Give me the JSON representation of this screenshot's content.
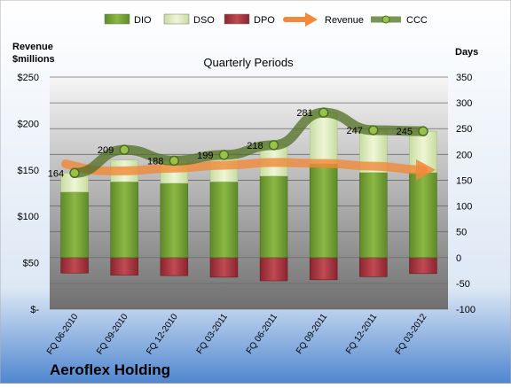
{
  "chart_data": {
    "type": "bar",
    "title": "Quarterly Periods",
    "company": "Aeroflex Holding",
    "left_axis": {
      "label_line1": "Revenue",
      "label_line2": "$millions",
      "ylim": [
        0,
        250
      ],
      "ticks": [
        {
          "v": 0,
          "t": "$-"
        },
        {
          "v": 50,
          "t": "$50"
        },
        {
          "v": 100,
          "t": "$100"
        },
        {
          "v": 150,
          "t": "$150"
        },
        {
          "v": 200,
          "t": "$200"
        },
        {
          "v": 250,
          "t": "$250"
        }
      ]
    },
    "right_axis": {
      "label": "Days",
      "ylim": [
        -100,
        350
      ],
      "ticks": [
        "-100",
        "-50",
        "0",
        "50",
        "100",
        "150",
        "200",
        "250",
        "300",
        "350"
      ]
    },
    "categories": [
      "FQ 06-2010",
      "FQ 09-2010",
      "FQ 12-2010",
      "FQ 03-2011",
      "FQ 06-2011",
      "FQ 09-2011",
      "FQ 12-2011",
      "FQ 03-2012"
    ],
    "legend": [
      {
        "name": "DIO",
        "color": "#7aa33a",
        "kind": "bar"
      },
      {
        "name": "DSO",
        "color": "#e6f0c8",
        "kind": "bar"
      },
      {
        "name": "DPO",
        "color": "#a8323c",
        "kind": "bar"
      },
      {
        "name": "Revenue",
        "color": "#f08a3a",
        "kind": "arrow"
      },
      {
        "name": "CCC",
        "color": "#5a7a2a",
        "kind": "line"
      }
    ],
    "series": [
      {
        "name": "DIO",
        "values": [
          127,
          147,
          144,
          147,
          158,
          182,
          165,
          165
        ]
      },
      {
        "name": "DSO",
        "values": [
          37,
          42,
          44,
          52,
          60,
          99,
          82,
          80
        ]
      },
      {
        "name": "DPO",
        "values": [
          -30,
          -34,
          -35,
          -38,
          -45,
          -43,
          -37,
          -31
        ]
      },
      {
        "name": "CCC",
        "values": [
          164,
          209,
          188,
          199,
          218,
          281,
          247,
          245
        ]
      },
      {
        "name": "Revenue",
        "values": [
          147,
          149,
          152,
          155,
          158,
          157,
          154,
          150
        ]
      }
    ],
    "ccc_labels": [
      "164",
      "209",
      "188",
      "199",
      "218",
      "281",
      "247",
      "245"
    ],
    "grid": true
  }
}
